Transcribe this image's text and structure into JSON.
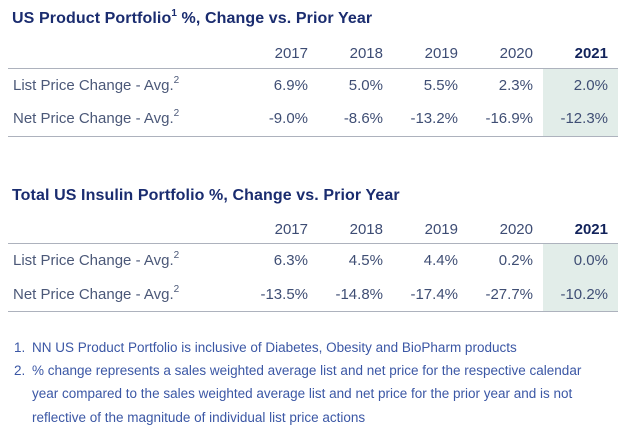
{
  "colors": {
    "title_navy": "#1a2c6f",
    "table_text": "#3f4e74",
    "year_header": "#3d4c74",
    "current_year": "#12235b",
    "footnote_blue": "#3b57a5",
    "highlight_teal": "#e2ede9",
    "rule_gray": "#adb2bd"
  },
  "tables": [
    {
      "title_main": "US Product Portfolio",
      "title_sup": "1",
      "title_rest": " %, Change vs. Prior Year",
      "years": [
        "2017",
        "2018",
        "2019",
        "2020",
        "2021"
      ],
      "rows": [
        {
          "label": "List Price Change - Avg.",
          "sup": "2",
          "values": [
            "6.9%",
            "5.0%",
            "5.5%",
            "2.3%",
            "2.0%"
          ]
        },
        {
          "label": "Net Price Change - Avg.",
          "sup": "2",
          "values": [
            "-9.0%",
            "-8.6%",
            "-13.2%",
            "-16.9%",
            "-12.3%"
          ]
        }
      ]
    },
    {
      "title_main": "Total US Insulin Portfolio %, Change vs. Prior Year",
      "title_sup": "",
      "title_rest": "",
      "years": [
        "2017",
        "2018",
        "2019",
        "2020",
        "2021"
      ],
      "rows": [
        {
          "label": "List Price Change - Avg.",
          "sup": "2",
          "values": [
            "6.3%",
            "4.5%",
            "4.4%",
            "0.2%",
            "0.0%"
          ]
        },
        {
          "label": "Net Price Change - Avg.",
          "sup": "2",
          "values": [
            "-13.5%",
            "-14.8%",
            "-17.4%",
            "-27.7%",
            "-10.2%"
          ]
        }
      ]
    }
  ],
  "footnotes": [
    {
      "marker": "1.",
      "text": "NN US Product Portfolio is inclusive of Diabetes, Obesity and BioPharm products"
    },
    {
      "marker": "2.",
      "text": "% change represents a sales weighted average list and net price for the respective calendar year compared to the sales weighted average list and net price for the prior year and is not reflective of the magnitude of individual list price actions"
    }
  ]
}
